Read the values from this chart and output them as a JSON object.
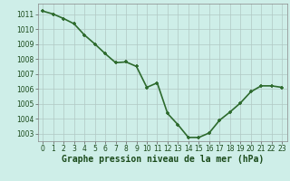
{
  "x": [
    0,
    1,
    2,
    3,
    4,
    5,
    6,
    7,
    8,
    9,
    10,
    11,
    12,
    13,
    14,
    15,
    16,
    17,
    18,
    19,
    20,
    21,
    22,
    23
  ],
  "y": [
    1011.2,
    1011.0,
    1010.7,
    1010.35,
    1009.6,
    1009.0,
    1008.35,
    1007.75,
    1007.8,
    1007.5,
    1006.1,
    1006.4,
    1004.35,
    1003.6,
    1002.75,
    1002.75,
    1003.05,
    1003.9,
    1004.45,
    1005.05,
    1005.8,
    1006.2,
    1006.2,
    1006.1
  ],
  "ylim": [
    1002.5,
    1011.7
  ],
  "yticks": [
    1003,
    1004,
    1005,
    1006,
    1007,
    1008,
    1009,
    1010,
    1011
  ],
  "xlim": [
    -0.5,
    23.5
  ],
  "xticks": [
    0,
    1,
    2,
    3,
    4,
    5,
    6,
    7,
    8,
    9,
    10,
    11,
    12,
    13,
    14,
    15,
    16,
    17,
    18,
    19,
    20,
    21,
    22,
    23
  ],
  "line_color": "#2d6a2d",
  "marker_color": "#2d6a2d",
  "bg_color": "#ceeee8",
  "grid_color": "#b0c8c4",
  "xlabel": "Graphe pression niveau de la mer (hPa)",
  "xlabel_color": "#1a4a1a",
  "xlabel_fontsize": 7.0,
  "tick_fontsize": 5.5,
  "line_width": 1.2,
  "marker_size": 3.0
}
